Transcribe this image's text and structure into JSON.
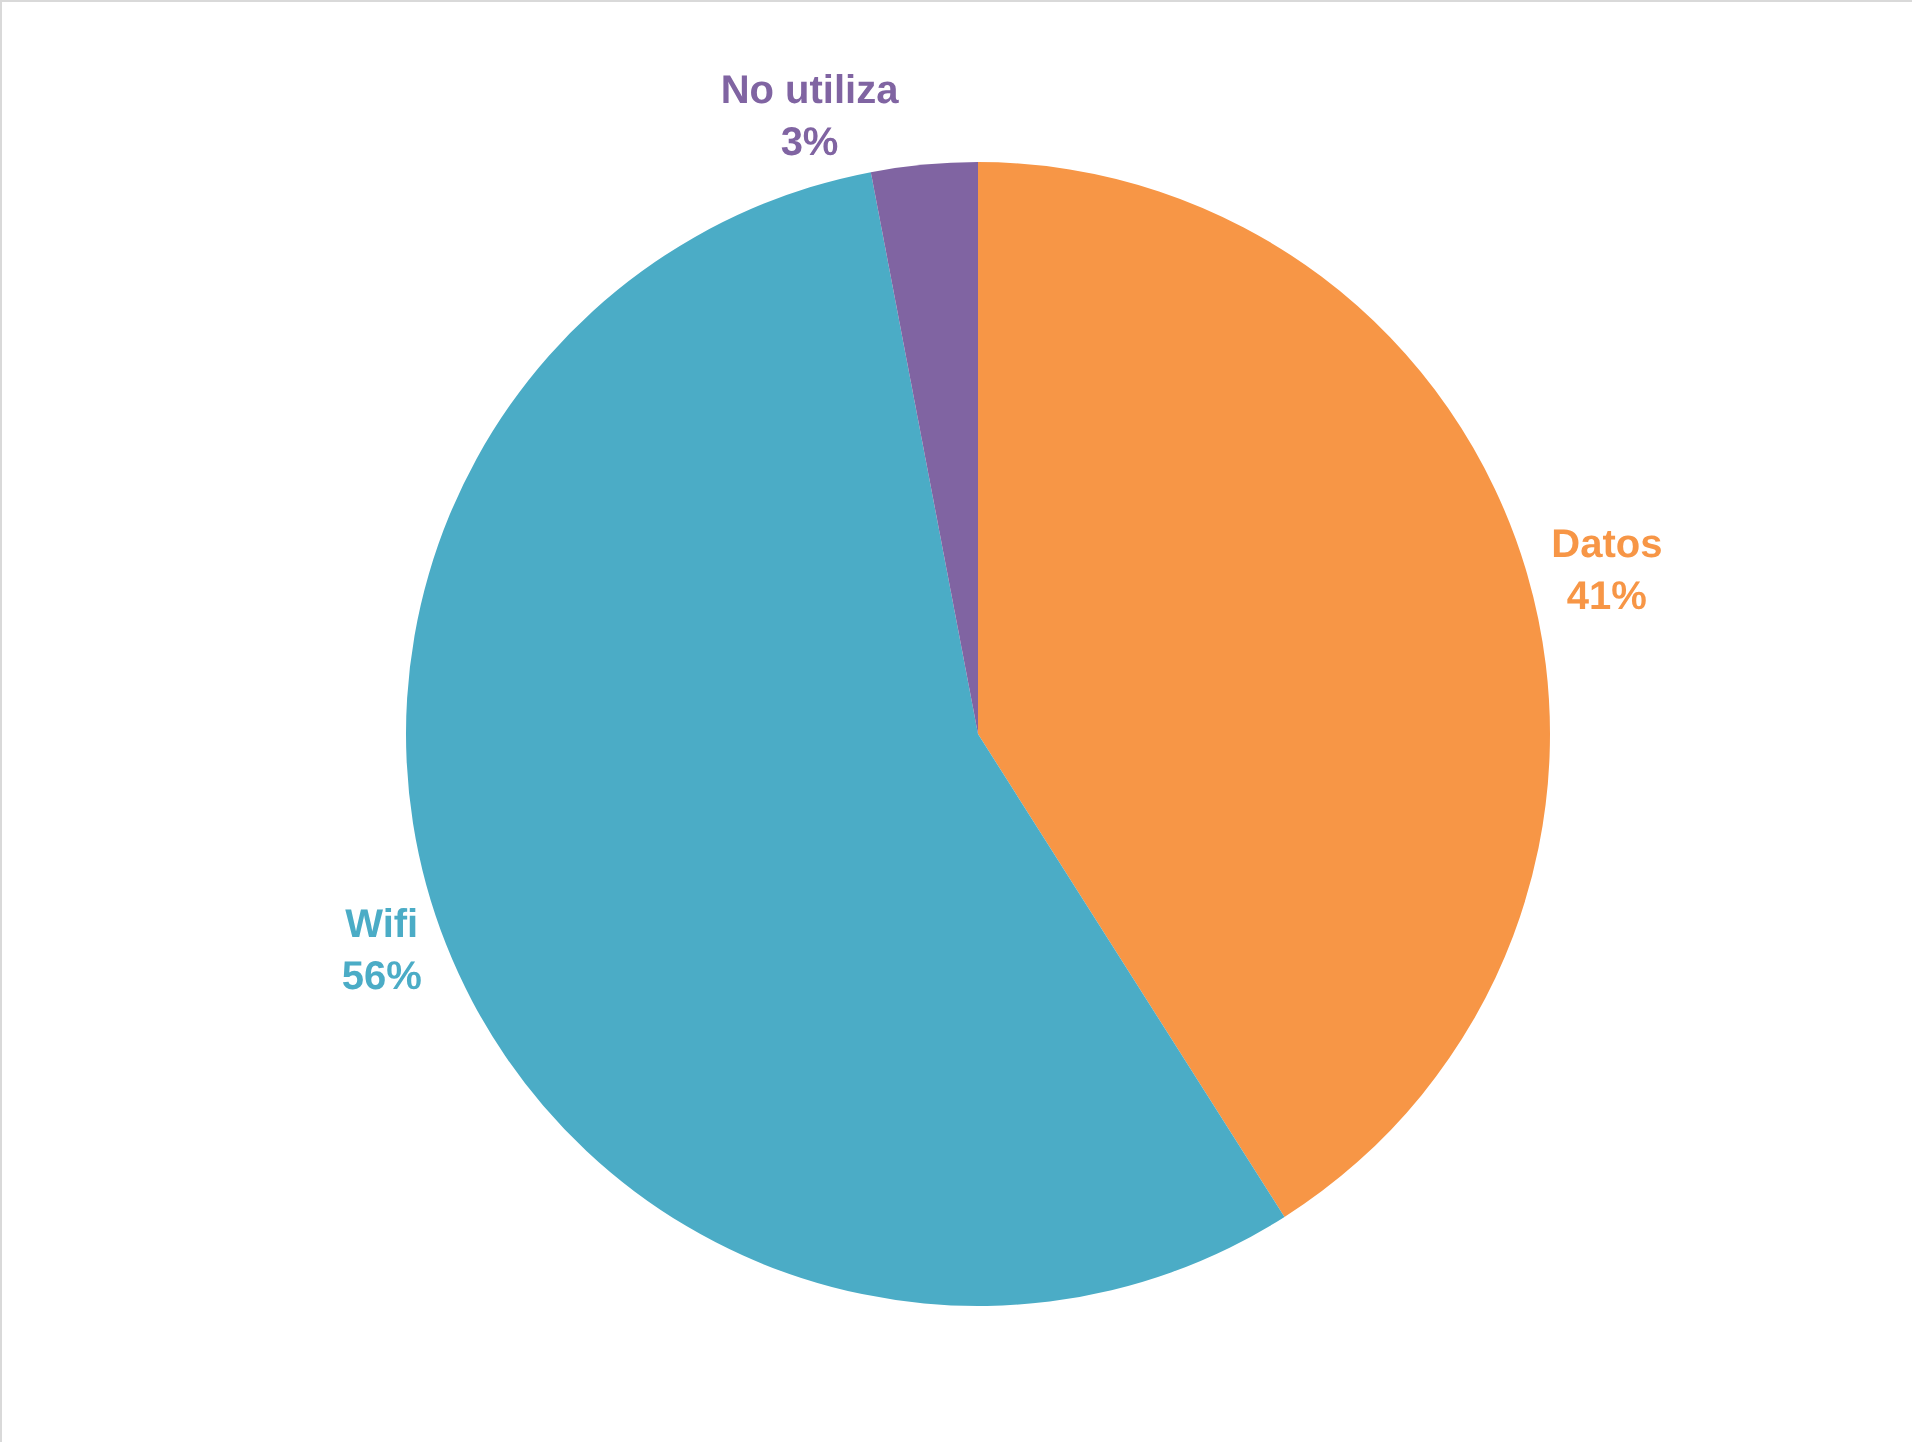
{
  "chart_data": {
    "type": "pie",
    "categories": [
      "Datos",
      "Wifi",
      "No utiliza"
    ],
    "values": [
      41,
      56,
      3
    ],
    "value_labels": [
      "41%",
      "56%",
      "3%"
    ],
    "colors": [
      "#f79646",
      "#4bacc6",
      "#8064a2"
    ],
    "legend": false
  }
}
